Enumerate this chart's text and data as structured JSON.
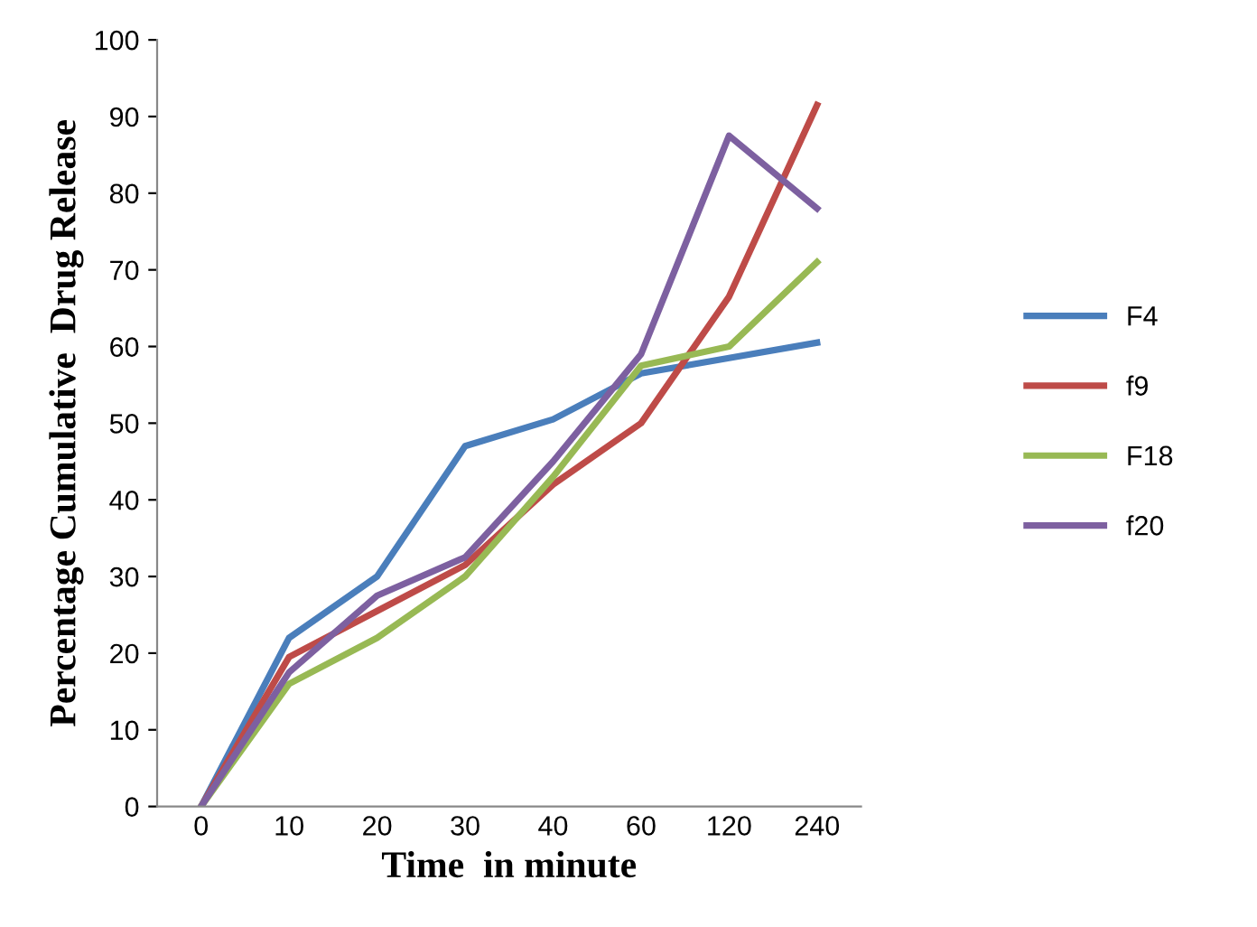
{
  "chart_data": {
    "type": "line",
    "xlabel": "Time  in minute",
    "ylabel": "Percentage Cumulative  Drug Release",
    "categories": [
      "0",
      "10",
      "20",
      "30",
      "40",
      "60",
      "120",
      "240"
    ],
    "series": [
      {
        "name": "F4",
        "color": "#4a7ebb",
        "values": [
          0,
          22,
          30,
          47,
          50.5,
          56.5,
          58.5,
          60.5
        ]
      },
      {
        "name": "f9",
        "color": "#be4b48",
        "values": [
          0,
          19.5,
          25.5,
          31.5,
          42,
          50,
          66.5,
          91.5
        ]
      },
      {
        "name": "F18",
        "color": "#98b954",
        "values": [
          0,
          16,
          22,
          30,
          43,
          57.5,
          60,
          71
        ]
      },
      {
        "name": "f20",
        "color": "#7d60a0",
        "values": [
          0,
          17.5,
          27.5,
          32.5,
          45,
          59,
          87.5,
          78
        ]
      }
    ],
    "ylim": [
      0,
      100
    ],
    "yticks": [
      0,
      10,
      20,
      30,
      40,
      50,
      60,
      70,
      80,
      90,
      100
    ],
    "grid": false,
    "legend": "right",
    "marker": "none",
    "line_style": "solid"
  }
}
